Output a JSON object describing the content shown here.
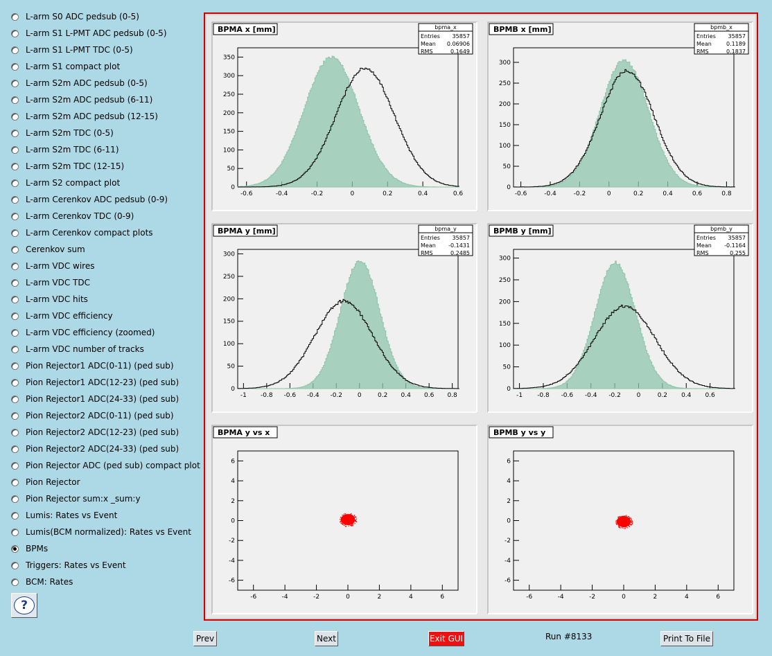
{
  "sidebar": {
    "items": [
      {
        "label": "L-arm S0 ADC pedsub (0-5)",
        "checked": false
      },
      {
        "label": "L-arm S1 L-PMT ADC pedsub (0-5)",
        "checked": false
      },
      {
        "label": "L-arm S1 L-PMT TDC (0-5)",
        "checked": false
      },
      {
        "label": "L-arm S1 compact plot",
        "checked": false
      },
      {
        "label": "L-arm S2m ADC pedsub (0-5)",
        "checked": false
      },
      {
        "label": "L-arm S2m ADC pedsub (6-11)",
        "checked": false
      },
      {
        "label": "L-arm S2m ADC pedsub (12-15)",
        "checked": false
      },
      {
        "label": "L-arm S2m TDC (0-5)",
        "checked": false
      },
      {
        "label": "L-arm S2m TDC (6-11)",
        "checked": false
      },
      {
        "label": "L-arm S2m TDC (12-15)",
        "checked": false
      },
      {
        "label": "L-arm S2 compact plot",
        "checked": false
      },
      {
        "label": "L-arm Cerenkov ADC pedsub (0-9)",
        "checked": false
      },
      {
        "label": "L-arm Cerenkov TDC (0-9)",
        "checked": false
      },
      {
        "label": "L-arm Cerenkov compact plots",
        "checked": false
      },
      {
        "label": "Cerenkov sum",
        "checked": false
      },
      {
        "label": "L-arm VDC wires",
        "checked": false
      },
      {
        "label": "L-arm VDC TDC",
        "checked": false
      },
      {
        "label": "L-arm VDC hits",
        "checked": false
      },
      {
        "label": "L-arm VDC efficiency",
        "checked": false
      },
      {
        "label": "L-arm VDC efficiency (zoomed)",
        "checked": false
      },
      {
        "label": "L-arm VDC number of tracks",
        "checked": false
      },
      {
        "label": "Pion Rejector1 ADC(0-11) (ped sub)",
        "checked": false
      },
      {
        "label": "Pion Rejector1 ADC(12-23) (ped sub)",
        "checked": false
      },
      {
        "label": "Pion Rejector1 ADC(24-33) (ped sub)",
        "checked": false
      },
      {
        "label": "Pion Rejector2 ADC(0-11) (ped sub)",
        "checked": false
      },
      {
        "label": "Pion Rejector2 ADC(12-23) (ped sub)",
        "checked": false
      },
      {
        "label": "Pion Rejector2 ADC(24-33) (ped sub)",
        "checked": false
      },
      {
        "label": "Pion Rejector ADC (ped sub) compact plot",
        "checked": false
      },
      {
        "label": "Pion Rejector",
        "checked": false
      },
      {
        "label": "Pion Rejector sum:x _sum:y",
        "checked": false
      },
      {
        "label": "Lumis: Rates vs Event",
        "checked": false
      },
      {
        "label": "Lumis(BCM normalized): Rates vs Event",
        "checked": false
      },
      {
        "label": "BPMs",
        "checked": true
      },
      {
        "label": "Triggers: Rates vs Event",
        "checked": false
      },
      {
        "label": "BCM: Rates",
        "checked": false
      }
    ],
    "help_icon": "question-mark-icon",
    "help_label": "?"
  },
  "colors": {
    "accent": "#d00000",
    "fill_hist": "#8fc5ad",
    "scatter": "#ff0000",
    "background": "#add8e6"
  },
  "chart_data": [
    {
      "type": "histogram",
      "title": "BPMA x [mm]",
      "stats": {
        "name": "bpma_x",
        "entries": "35857",
        "mean": "0.06906",
        "rms": "0.1649"
      },
      "xlim": [
        -0.65,
        0.6
      ],
      "ylim": [
        0,
        375
      ],
      "xticks": [
        "-0.6",
        "-0.4",
        "-0.2",
        "0",
        "0.2",
        "0.4",
        "0.6"
      ],
      "yticks": [
        "0",
        "50",
        "100",
        "150",
        "200",
        "250",
        "300",
        "350"
      ],
      "series": [
        {
          "kind": "filled",
          "mean": -0.12,
          "sigma": 0.155,
          "peak": 350
        },
        {
          "kind": "line",
          "mean": 0.07,
          "sigma": 0.165,
          "peak": 320
        }
      ]
    },
    {
      "type": "histogram",
      "title": "BPMB x [mm]",
      "stats": {
        "name": "bpmb_x",
        "entries": "35857",
        "mean": "0.1189",
        "rms": "0.1837"
      },
      "xlim": [
        -0.65,
        0.85
      ],
      "ylim": [
        0,
        335
      ],
      "xticks": [
        "-0.6",
        "-0.4",
        "-0.2",
        "0",
        "0.2",
        "0.4",
        "0.6",
        "0.8"
      ],
      "yticks": [
        "0",
        "50",
        "100",
        "150",
        "200",
        "250",
        "300"
      ],
      "series": [
        {
          "kind": "filled",
          "mean": 0.1,
          "sigma": 0.165,
          "peak": 305
        },
        {
          "kind": "line",
          "mean": 0.12,
          "sigma": 0.184,
          "peak": 280
        }
      ]
    },
    {
      "type": "histogram",
      "title": "BPMA y [mm]",
      "stats": {
        "name": "bpma_y",
        "entries": "35857",
        "mean": "-0.1431",
        "rms": "0.2485"
      },
      "xlim": [
        -1.05,
        0.85
      ],
      "ylim": [
        0,
        310
      ],
      "xticks": [
        "-1",
        "-0.8",
        "-0.6",
        "-0.4",
        "-0.2",
        "0",
        "0.2",
        "0.4",
        "0.6",
        "0.8"
      ],
      "yticks": [
        "0",
        "50",
        "100",
        "150",
        "200",
        "250",
        "300"
      ],
      "series": [
        {
          "kind": "filled",
          "mean": 0.0,
          "sigma": 0.17,
          "peak": 285
        },
        {
          "kind": "line",
          "mean": -0.14,
          "sigma": 0.25,
          "peak": 195
        }
      ]
    },
    {
      "type": "histogram",
      "title": "BPMB y [mm]",
      "stats": {
        "name": "bpmb_y",
        "entries": "35857",
        "mean": "-0.1164",
        "rms": "0.255"
      },
      "xlim": [
        -1.05,
        0.8
      ],
      "ylim": [
        0,
        320
      ],
      "xticks": [
        "-1",
        "-0.8",
        "-0.6",
        "-0.4",
        "-0.2",
        "0",
        "0.2",
        "0.4",
        "0.6"
      ],
      "yticks": [
        "0",
        "50",
        "100",
        "150",
        "200",
        "250",
        "300"
      ],
      "series": [
        {
          "kind": "filled",
          "mean": -0.2,
          "sigma": 0.17,
          "peak": 290
        },
        {
          "kind": "line",
          "mean": -0.12,
          "sigma": 0.255,
          "peak": 190
        }
      ]
    },
    {
      "type": "scatter",
      "title": "BPMA y vs x",
      "xlim": [
        -7,
        7
      ],
      "ylim": [
        -7,
        7
      ],
      "xticks": [
        "-6",
        "-4",
        "-2",
        "0",
        "2",
        "4",
        "6"
      ],
      "yticks": [
        "-6",
        "-4",
        "-2",
        "0",
        "2",
        "4",
        "6"
      ],
      "center": [
        0,
        0.1
      ],
      "spread": 0.25
    },
    {
      "type": "scatter",
      "title": "BPMB y vs y",
      "xlim": [
        -7,
        7
      ],
      "ylim": [
        -7,
        7
      ],
      "xticks": [
        "-6",
        "-4",
        "-2",
        "0",
        "2",
        "4",
        "6"
      ],
      "yticks": [
        "-6",
        "-4",
        "-2",
        "0",
        "2",
        "4",
        "6"
      ],
      "center": [
        0,
        -0.1
      ],
      "spread": 0.25
    }
  ],
  "bottom": {
    "prev_label": "Prev",
    "next_label": "Next",
    "exit_label": "Exit GUI",
    "run_label": "Run #8133",
    "print_label": "Print To File"
  }
}
